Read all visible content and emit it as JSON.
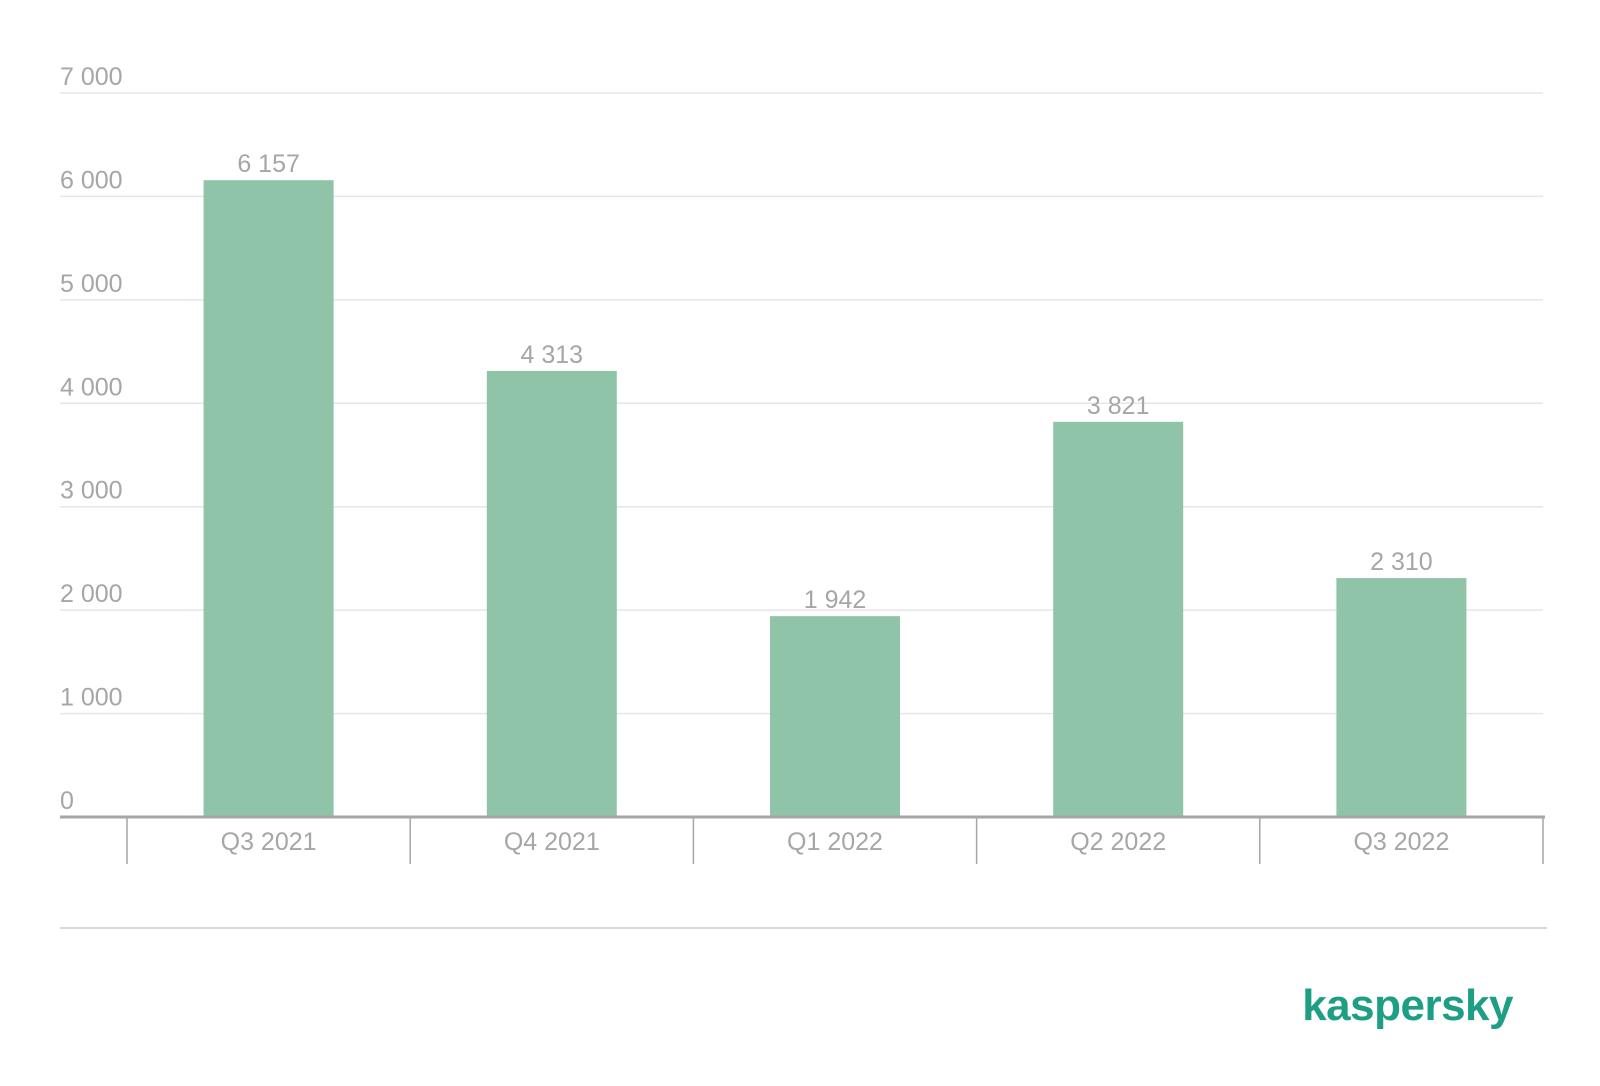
{
  "chart_data": {
    "type": "bar",
    "title": "",
    "xlabel": "",
    "ylabel": "",
    "categories": [
      "Q3 2021",
      "Q4 2021",
      "Q1 2022",
      "Q2 2022",
      "Q3 2022"
    ],
    "values": [
      6157,
      4313,
      1942,
      3821,
      2310
    ],
    "value_labels": [
      "6 157",
      "4 313",
      "1 942",
      "3 821",
      "2 310"
    ],
    "ylim": [
      0,
      7000
    ],
    "yticks": [
      0,
      1000,
      2000,
      3000,
      4000,
      5000,
      6000,
      7000
    ],
    "ytick_labels": [
      "0",
      "1 000",
      "2 000",
      "3 000",
      "4 000",
      "5 000",
      "6 000",
      "7 000"
    ],
    "grid": true,
    "legend": "none",
    "bar_color": "#90c4a8"
  },
  "brand": {
    "logo_text": "kaspersky",
    "color": "#1d9e85"
  }
}
